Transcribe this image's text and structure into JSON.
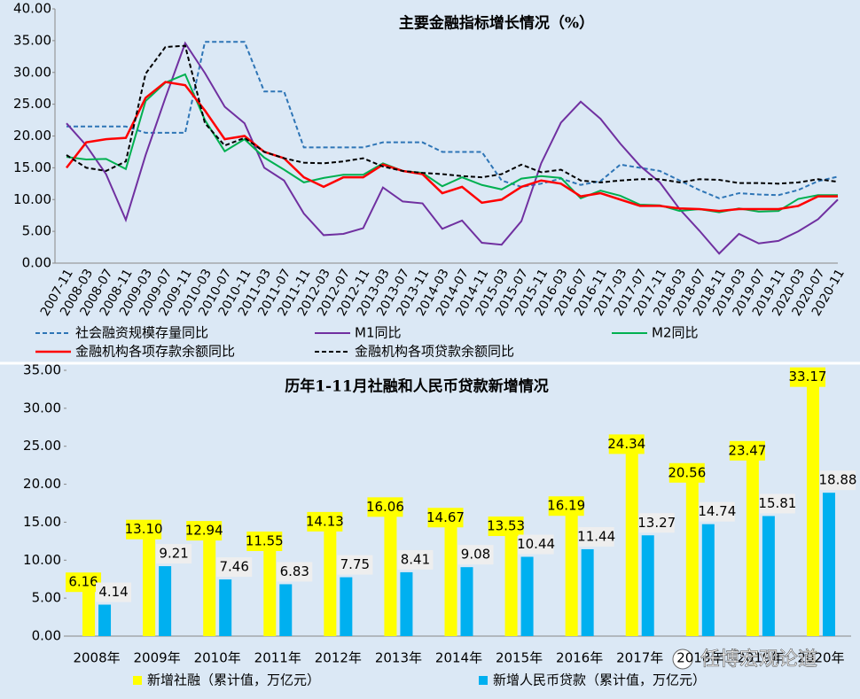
{
  "chart_data": [
    {
      "type": "line",
      "title": "主要金融指标增长情况（%）",
      "categories": [
        "2007-11",
        "2008-03",
        "2008-07",
        "2008-11",
        "2009-03",
        "2009-07",
        "2009-11",
        "2010-03",
        "2010-07",
        "2010-11",
        "2011-03",
        "2011-07",
        "2011-11",
        "2012-03",
        "2012-07",
        "2012-11",
        "2013-03",
        "2013-07",
        "2013-11",
        "2014-03",
        "2014-07",
        "2014-11",
        "2015-03",
        "2015-07",
        "2015-11",
        "2016-03",
        "2016-07",
        "2016-11",
        "2017-03",
        "2017-07",
        "2017-11",
        "2018-03",
        "2018-07",
        "2018-11",
        "2019-03",
        "2019-07",
        "2019-11",
        "2020-03",
        "2020-07",
        "2020-11"
      ],
      "series": [
        {
          "name": "社会融资规模存量同比",
          "color": "#2e75b6",
          "style": "dashed",
          "values": [
            21.5,
            21.5,
            21.5,
            21.5,
            20.5,
            20.5,
            20.5,
            34.8,
            34.8,
            34.8,
            27,
            27,
            18.2,
            18.2,
            18.2,
            18.2,
            19,
            19,
            19,
            17.5,
            17.5,
            17.5,
            13,
            12,
            12.5,
            13.3,
            12.3,
            12.9,
            15.5,
            15,
            14.5,
            13,
            11.5,
            10.2,
            11,
            10.8,
            10.7,
            11.5,
            12.9,
            13.6
          ]
        },
        {
          "name": "M1同比",
          "color": "#7030a0",
          "style": "solid",
          "values": [
            22,
            18.5,
            14,
            6.8,
            17,
            26,
            34.6,
            29.9,
            24.6,
            22,
            15,
            13,
            7.8,
            4.4,
            4.6,
            5.5,
            11.9,
            9.7,
            9.4,
            5.4,
            6.7,
            3.2,
            2.9,
            6.6,
            15.7,
            22.1,
            25.4,
            22.7,
            18.8,
            15.3,
            12.7,
            8.5,
            5.1,
            1.5,
            4.6,
            3.1,
            3.5,
            5,
            6.9,
            10
          ]
        },
        {
          "name": "M2同比",
          "color": "#00b050",
          "style": "solid",
          "values": [
            16.7,
            16.3,
            16.4,
            14.8,
            25.5,
            28.4,
            29.7,
            22.5,
            17.6,
            19.5,
            16.6,
            14.7,
            12.7,
            13.4,
            13.9,
            13.9,
            15.7,
            14.5,
            14.2,
            12.1,
            13.5,
            12.3,
            11.6,
            13.3,
            13.7,
            13.4,
            10.2,
            11.4,
            10.6,
            9.2,
            9.1,
            8.2,
            8.5,
            8,
            8.6,
            8.1,
            8.2,
            10.1,
            10.7,
            10.7
          ]
        },
        {
          "name": "金融机构各项存款余额同比",
          "color": "#ff0000",
          "style": "bold",
          "values": [
            15,
            19,
            19.5,
            19.7,
            26,
            28.5,
            28,
            24,
            19.5,
            20,
            17.5,
            16.5,
            13.5,
            12,
            13.5,
            13.5,
            15.5,
            14.5,
            14,
            11,
            12,
            9.5,
            10,
            12,
            13,
            12.5,
            10.5,
            11,
            10,
            9,
            9,
            8.6,
            8.5,
            8.2,
            8.5,
            8.5,
            8.5,
            9,
            10.5,
            10.5
          ]
        },
        {
          "name": "金融机构各项贷款余额同比",
          "color": "#000000",
          "style": "dashed",
          "values": [
            17,
            15,
            14.5,
            16,
            29.8,
            34,
            34.2,
            22,
            18.5,
            19.7,
            17.5,
            16.5,
            15.8,
            15.7,
            16,
            16.5,
            15.2,
            14.5,
            14.2,
            14,
            13.7,
            13.5,
            14,
            15.5,
            14.3,
            14.7,
            13,
            12.7,
            13,
            13.2,
            13.2,
            12.7,
            13.2,
            13.1,
            12.6,
            12.6,
            12.5,
            12.7,
            13.2,
            12.8
          ]
        }
      ],
      "ylim": [
        0,
        40
      ],
      "yticks": [
        {
          "value": 0,
          "label": "0.00"
        },
        {
          "value": 5,
          "label": "5.00"
        },
        {
          "value": 10,
          "label": "10.00"
        },
        {
          "value": 15,
          "label": "15.00"
        },
        {
          "value": 20,
          "label": "20.00"
        },
        {
          "value": 25,
          "label": "25.00"
        },
        {
          "value": 30,
          "label": "30.00"
        },
        {
          "value": 35,
          "label": "35.00"
        },
        {
          "value": 40,
          "label": "40.00"
        }
      ],
      "grid": false
    },
    {
      "type": "bar",
      "title": "历年1-11月社融和人民币贷款新增情况",
      "categories": [
        "2008年",
        "2009年",
        "2010年",
        "2011年",
        "2012年",
        "2013年",
        "2014年",
        "2015年",
        "2016年",
        "2017年",
        "2018年",
        "2019年",
        "2020年"
      ],
      "series": [
        {
          "name": "新增社融（累计值，万亿元）",
          "color": "#ffff00",
          "label_bg": "#ffff00",
          "values": [
            6.16,
            13.1,
            12.94,
            11.55,
            14.13,
            16.06,
            14.67,
            13.53,
            16.19,
            24.34,
            20.56,
            23.47,
            33.17
          ],
          "value_labels": [
            "6.16",
            "13.10",
            "12.94",
            "11.55",
            "14.13",
            "16.06",
            "14.67",
            "13.53",
            "16.19",
            "24.34",
            "20.56",
            "23.47",
            "33.17"
          ]
        },
        {
          "name": "新增人民币贷款（累计值，万亿元）",
          "color": "#00b0f0",
          "label_bg": "#eeeeee",
          "values": [
            4.14,
            9.21,
            7.46,
            6.83,
            7.75,
            8.41,
            9.08,
            10.44,
            11.44,
            13.27,
            14.74,
            15.81,
            18.88
          ],
          "value_labels": [
            "4.14",
            "9.21",
            "7.46",
            "6.83",
            "7.75",
            "8.41",
            "9.08",
            "10.44",
            "11.44",
            "13.27",
            "14.74",
            "15.81",
            "18.88"
          ]
        }
      ],
      "ylim": [
        0,
        35
      ],
      "yticks": [
        {
          "value": 0,
          "label": "0.00"
        },
        {
          "value": 5,
          "label": "5.00"
        },
        {
          "value": 10,
          "label": "10.00"
        },
        {
          "value": 15,
          "label": "15.00"
        },
        {
          "value": 20,
          "label": "20.00"
        },
        {
          "value": 25,
          "label": "25.00"
        },
        {
          "value": 30,
          "label": "30.00"
        },
        {
          "value": 35,
          "label": "35.00"
        }
      ],
      "grid": false
    }
  ],
  "watermark": "任博宏观论道"
}
